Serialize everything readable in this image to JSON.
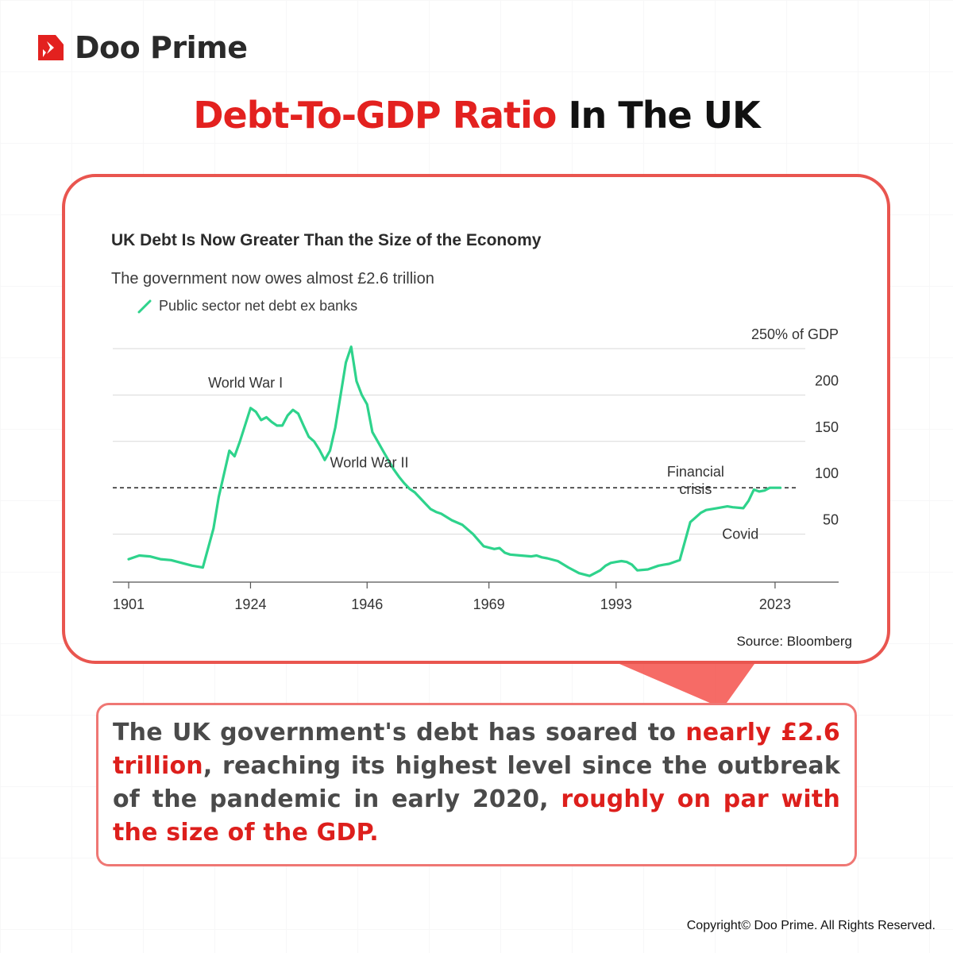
{
  "brand": {
    "name": "Doo Prime",
    "accent": "#e3211f"
  },
  "headline": {
    "red_part": "Debt-To-GDP Ratio",
    "black_part": "In The UK"
  },
  "chart_data": {
    "type": "line",
    "title": "UK Debt Is Now Greater Than the Size of the Economy",
    "subtitle": "The government now owes almost £2.6 trillion",
    "xlabel": "",
    "ylabel": "",
    "xlim": [
      1898,
      2035
    ],
    "ylim": [
      0,
      250
    ],
    "x_ticks": [
      "1901",
      "1924",
      "1946",
      "1969",
      "1993",
      "2023"
    ],
    "x_tick_values": [
      1901,
      1924,
      1946,
      1969,
      1993,
      2023
    ],
    "y_ticks": [
      "250% of GDP",
      "200",
      "150",
      "100",
      "50"
    ],
    "y_tick_values": [
      250,
      200,
      150,
      100,
      50
    ],
    "gridlines": [
      250,
      200,
      150,
      50
    ],
    "reference_line": 100,
    "color": "#2ed38c",
    "series": [
      {
        "name": "Public sector net debt ex banks",
        "x": [
          1901,
          1903,
          1905,
          1907,
          1909,
          1911,
          1913,
          1915,
          1917,
          1918,
          1919,
          1920,
          1921,
          1922,
          1924,
          1925,
          1926,
          1927,
          1928,
          1929,
          1930,
          1931,
          1932,
          1933,
          1934,
          1935,
          1936,
          1937,
          1938,
          1939,
          1940,
          1941,
          1942,
          1943,
          1944,
          1945,
          1946,
          1947,
          1948,
          1949,
          1950,
          1951,
          1952,
          1953,
          1954,
          1955,
          1956,
          1957,
          1958,
          1959,
          1960,
          1962,
          1964,
          1966,
          1968,
          1970,
          1971,
          1972,
          1973,
          1975,
          1977,
          1978,
          1979,
          1980,
          1982,
          1984,
          1986,
          1988,
          1990,
          1991,
          1992,
          1993,
          1994,
          1995,
          1996,
          1997,
          1999,
          2000,
          2001,
          2002,
          2003,
          2005,
          2007,
          2008,
          2009,
          2010,
          2012,
          2014,
          2015,
          2017,
          2018,
          2019,
          2020,
          2021,
          2022,
          2023,
          2024
        ],
        "y": [
          23,
          27,
          26,
          23,
          22,
          19,
          16,
          14,
          56,
          90,
          115,
          140,
          134,
          150,
          186,
          182,
          173,
          176,
          171,
          167,
          167,
          178,
          184,
          180,
          167,
          155,
          150,
          141,
          130,
          140,
          165,
          200,
          235,
          252,
          215,
          200,
          190,
          160,
          150,
          140,
          130,
          120,
          112,
          105,
          99,
          95,
          89,
          83,
          77,
          74,
          72,
          65,
          60,
          50,
          37,
          34,
          35,
          30,
          28,
          27,
          26,
          27,
          25,
          24,
          21,
          14,
          8,
          5,
          11,
          16,
          19,
          20,
          21,
          20,
          17,
          11,
          12,
          14,
          16,
          17,
          18,
          22,
          63,
          68,
          73,
          76,
          78,
          80,
          79,
          78,
          86,
          98,
          96,
          97,
          100,
          100,
          100
        ]
      }
    ],
    "annotations": [
      {
        "text": "World War I",
        "x": 1916,
        "y": 208
      },
      {
        "text": "World War II",
        "x": 1939,
        "y": 122
      },
      {
        "text": "Financial crisis",
        "x": 2008,
        "y": 112
      },
      {
        "text": "Covid",
        "x": 2013,
        "y": 45
      }
    ],
    "source": "Source: Bloomberg"
  },
  "body_text": {
    "part1": "The UK government's debt has soared to ",
    "highlight1": "nearly £2.6 trillion",
    "part2": ", reaching its highest level since the outbreak of the pandemic in early 2020, ",
    "highlight2": "roughly on par with the size of the GDP."
  },
  "copyright": "Copyright© Doo Prime. All Rights Reserved."
}
